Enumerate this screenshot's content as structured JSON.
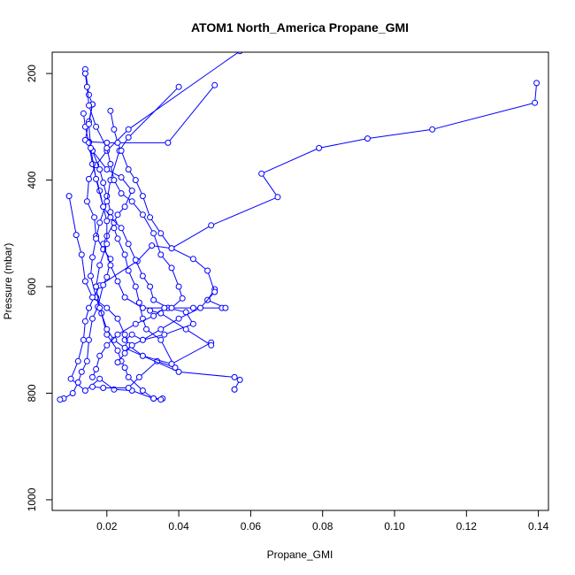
{
  "chart_data": {
    "type": "line",
    "title": "ATOM1 North_America Propane_GMI",
    "xlabel": "Propane_GMI",
    "ylabel": "Pressure (mbar)",
    "xlim": [
      0.0048,
      0.1428
    ],
    "ylim": [
      1020,
      160
    ],
    "y_reversed": true,
    "xticks": [
      0.02,
      0.04,
      0.06,
      0.08,
      0.1,
      0.12,
      0.14
    ],
    "xtick_labels": [
      "0.02",
      "0.04",
      "0.06",
      "0.08",
      "0.10",
      "0.12",
      "0.14"
    ],
    "yticks": [
      200,
      400,
      600,
      800,
      1000
    ],
    "ytick_labels": [
      "200",
      "400",
      "600",
      "800",
      "1000"
    ],
    "grid": false,
    "series": [
      {
        "color": "#0000ff",
        "marker": "open-circle",
        "points": [
          [
            0.1395,
            218
          ],
          [
            0.139,
            255
          ],
          [
            0.1105,
            305
          ],
          [
            0.0925,
            322
          ],
          [
            0.079,
            340
          ],
          [
            0.063,
            388
          ],
          [
            0.0675,
            432
          ],
          [
            0.049,
            485
          ],
          [
            0.038,
            528
          ],
          [
            0.0325,
            523
          ],
          [
            0.0285,
            552
          ],
          [
            0.018,
            598
          ],
          [
            0.015,
            640
          ],
          [
            0.014,
            665
          ],
          [
            0.0135,
            700
          ],
          [
            0.012,
            740
          ],
          [
            0.01,
            773
          ],
          [
            0.014,
            795
          ],
          [
            0.018,
            773
          ],
          [
            0.022,
            793
          ],
          [
            0.027,
            795
          ],
          [
            0.033,
            810
          ],
          [
            0.0355,
            810
          ]
        ]
      },
      {
        "color": "#0000ff",
        "marker": "open-circle",
        "points": [
          [
            0.057,
            158
          ],
          [
            0.026,
            305
          ],
          [
            0.02,
            345
          ],
          [
            0.017,
            372
          ],
          [
            0.015,
            398
          ],
          [
            0.0145,
            440
          ],
          [
            0.0165,
            470
          ],
          [
            0.017,
            505
          ],
          [
            0.019,
            530
          ],
          [
            0.021,
            548
          ],
          [
            0.02,
            582
          ],
          [
            0.019,
            597
          ],
          [
            0.0175,
            638
          ],
          [
            0.016,
            660
          ],
          [
            0.015,
            700
          ],
          [
            0.0145,
            740
          ],
          [
            0.013,
            760
          ],
          [
            0.012,
            780
          ],
          [
            0.0105,
            800
          ],
          [
            0.008,
            810
          ],
          [
            0.007,
            812
          ]
        ]
      },
      {
        "color": "#0000ff",
        "marker": "open-circle",
        "points": [
          [
            0.05,
            222
          ],
          [
            0.037,
            330
          ],
          [
            0.02,
            330
          ],
          [
            0.015,
            328
          ],
          [
            0.016,
            345
          ],
          [
            0.018,
            380
          ],
          [
            0.019,
            405
          ],
          [
            0.02,
            430
          ],
          [
            0.021,
            460
          ],
          [
            0.022,
            490
          ],
          [
            0.023,
            510
          ],
          [
            0.025,
            540
          ],
          [
            0.026,
            570
          ],
          [
            0.028,
            600
          ],
          [
            0.029,
            630
          ],
          [
            0.03,
            660
          ],
          [
            0.031,
            680
          ],
          [
            0.035,
            700
          ],
          [
            0.039,
            752
          ],
          [
            0.034,
            740
          ],
          [
            0.029,
            770
          ],
          [
            0.026,
            790
          ],
          [
            0.019,
            790
          ],
          [
            0.016,
            788
          ]
        ]
      },
      {
        "color": "#0000ff",
        "marker": "open-circle",
        "points": [
          [
            0.04,
            225
          ],
          [
            0.026,
            320
          ],
          [
            0.0235,
            345
          ],
          [
            0.021,
            400
          ],
          [
            0.02,
            440
          ],
          [
            0.018,
            480
          ],
          [
            0.017,
            510
          ],
          [
            0.016,
            545
          ],
          [
            0.0155,
            580
          ],
          [
            0.017,
            620
          ],
          [
            0.0185,
            650
          ],
          [
            0.02,
            690
          ],
          [
            0.023,
            720
          ],
          [
            0.024,
            740
          ],
          [
            0.025,
            752
          ],
          [
            0.026,
            770
          ],
          [
            0.03,
            795
          ],
          [
            0.033,
            810
          ],
          [
            0.035,
            812
          ]
        ]
      },
      {
        "color": "#0000ff",
        "marker": "open-circle",
        "points": [
          [
            0.014,
            192
          ],
          [
            0.015,
            240
          ],
          [
            0.016,
            258
          ],
          [
            0.015,
            290
          ],
          [
            0.014,
            325
          ],
          [
            0.016,
            345
          ],
          [
            0.02,
            380
          ],
          [
            0.024,
            395
          ],
          [
            0.027,
            420
          ],
          [
            0.025,
            450
          ],
          [
            0.023,
            465
          ],
          [
            0.022,
            480
          ],
          [
            0.02,
            505
          ],
          [
            0.019,
            520
          ],
          [
            0.021,
            560
          ],
          [
            0.023,
            590
          ],
          [
            0.025,
            620
          ],
          [
            0.03,
            640
          ],
          [
            0.037,
            640
          ],
          [
            0.042,
            648
          ],
          [
            0.044,
            670
          ],
          [
            0.036,
            690
          ],
          [
            0.03,
            700
          ],
          [
            0.027,
            690
          ],
          [
            0.025,
            700
          ]
        ]
      },
      {
        "color": "#0000ff",
        "marker": "open-circle",
        "points": [
          [
            0.0135,
            275
          ],
          [
            0.014,
            300
          ],
          [
            0.015,
            330
          ],
          [
            0.016,
            370
          ],
          [
            0.018,
            420
          ],
          [
            0.019,
            450
          ],
          [
            0.021,
            470
          ],
          [
            0.024,
            490
          ],
          [
            0.026,
            520
          ],
          [
            0.028,
            550
          ],
          [
            0.03,
            580
          ],
          [
            0.032,
            600
          ],
          [
            0.033,
            625
          ],
          [
            0.037,
            640
          ],
          [
            0.044,
            640
          ],
          [
            0.052,
            640
          ],
          [
            0.053,
            640
          ],
          [
            0.048,
            625
          ],
          [
            0.05,
            605
          ]
        ]
      },
      {
        "color": "#0000ff",
        "marker": "open-circle",
        "points": [
          [
            0.0095,
            430
          ],
          [
            0.0115,
            503
          ],
          [
            0.013,
            540
          ],
          [
            0.014,
            590
          ],
          [
            0.016,
            620
          ],
          [
            0.02,
            640
          ],
          [
            0.023,
            660
          ],
          [
            0.025,
            690
          ],
          [
            0.026,
            710
          ],
          [
            0.03,
            730
          ],
          [
            0.038,
            745
          ],
          [
            0.049,
            705
          ],
          [
            0.049,
            710
          ],
          [
            0.042,
            680
          ],
          [
            0.035,
            650
          ],
          [
            0.032,
            645
          ]
        ]
      },
      {
        "color": "#0000ff",
        "marker": "open-circle",
        "points": [
          [
            0.021,
            270
          ],
          [
            0.022,
            305
          ],
          [
            0.023,
            330
          ],
          [
            0.024,
            345
          ],
          [
            0.026,
            380
          ],
          [
            0.028,
            400
          ],
          [
            0.03,
            430
          ],
          [
            0.032,
            470
          ],
          [
            0.035,
            500
          ],
          [
            0.038,
            528
          ],
          [
            0.044,
            548
          ],
          [
            0.048,
            570
          ],
          [
            0.05,
            610
          ],
          [
            0.046,
            640
          ],
          [
            0.04,
            660
          ],
          [
            0.035,
            680
          ],
          [
            0.03,
            700
          ],
          [
            0.027,
            710
          ],
          [
            0.025,
            725
          ],
          [
            0.023,
            742
          ]
        ]
      },
      {
        "color": "#0000ff",
        "marker": "open-circle",
        "points": [
          [
            0.016,
            258
          ],
          [
            0.015,
            295
          ],
          [
            0.0155,
            340
          ],
          [
            0.017,
            398
          ],
          [
            0.019,
            450
          ],
          [
            0.02,
            477
          ],
          [
            0.02,
            520
          ],
          [
            0.018,
            560
          ],
          [
            0.017,
            600
          ],
          [
            0.018,
            640
          ],
          [
            0.02,
            680
          ],
          [
            0.022,
            700
          ],
          [
            0.025,
            715
          ],
          [
            0.03,
            730
          ],
          [
            0.04,
            760
          ],
          [
            0.0555,
            770
          ],
          [
            0.057,
            775
          ],
          [
            0.0555,
            793
          ],
          [
            0.0555,
            793
          ]
        ]
      },
      {
        "color": "#0000ff",
        "marker": "open-circle",
        "points": [
          [
            0.014,
            200
          ],
          [
            0.0145,
            225
          ],
          [
            0.015,
            260
          ],
          [
            0.017,
            300
          ],
          [
            0.02,
            340
          ],
          [
            0.021,
            370
          ],
          [
            0.022,
            400
          ],
          [
            0.024,
            425
          ],
          [
            0.027,
            440
          ],
          [
            0.03,
            465
          ],
          [
            0.033,
            500
          ],
          [
            0.035,
            540
          ],
          [
            0.038,
            565
          ],
          [
            0.04,
            600
          ],
          [
            0.041,
            622
          ],
          [
            0.038,
            640
          ],
          [
            0.036,
            640
          ],
          [
            0.033,
            655
          ],
          [
            0.028,
            670
          ],
          [
            0.023,
            690
          ],
          [
            0.02,
            710
          ],
          [
            0.018,
            730
          ],
          [
            0.017,
            755
          ],
          [
            0.016,
            770
          ]
        ]
      }
    ]
  }
}
